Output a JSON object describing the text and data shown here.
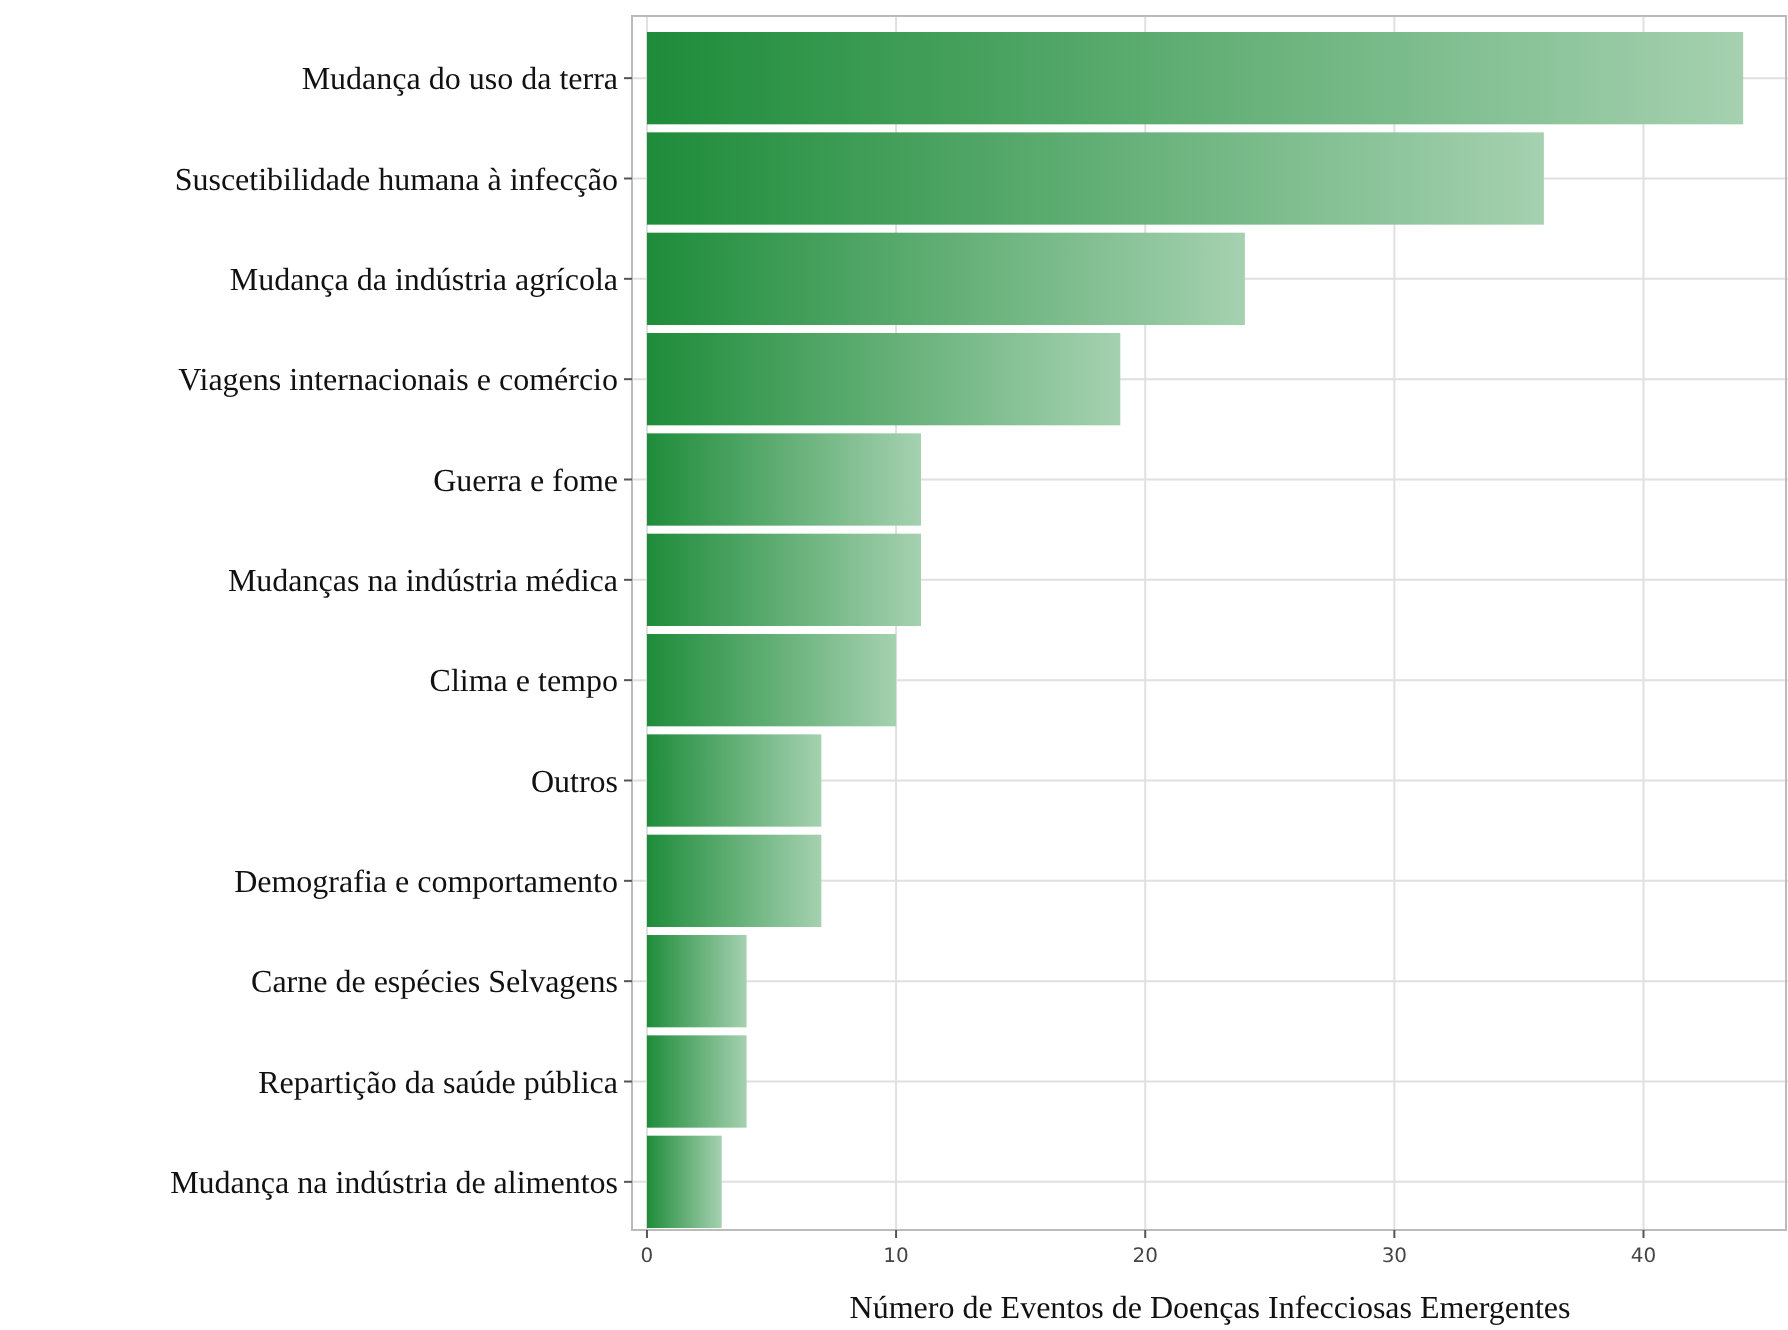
{
  "chart_data": {
    "type": "bar",
    "orientation": "horizontal",
    "xlabel": "Número de Eventos de Doenças Infecciosas Emergentes",
    "categories": [
      "Mudança do uso da terra",
      "Suscetibilidade humana à infecção",
      "Mudança da indústria agrícola",
      "Viagens internacionais e comércio",
      "Guerra e fome",
      "Mudanças na indústria médica",
      "Clima e tempo",
      "Outros",
      "Demografia e comportamento",
      "Carne de espécies Selvagens",
      "Repartição da saúde pública",
      "Mudança na indústria de alimentos"
    ],
    "values": [
      44,
      36,
      24,
      19,
      11,
      11,
      10,
      7,
      7,
      4,
      4,
      3
    ],
    "color": "#1e8c3a",
    "xlim": [
      -0.6,
      45.8
    ],
    "xticks": [
      0,
      10,
      20,
      30,
      40
    ],
    "grid": true
  }
}
